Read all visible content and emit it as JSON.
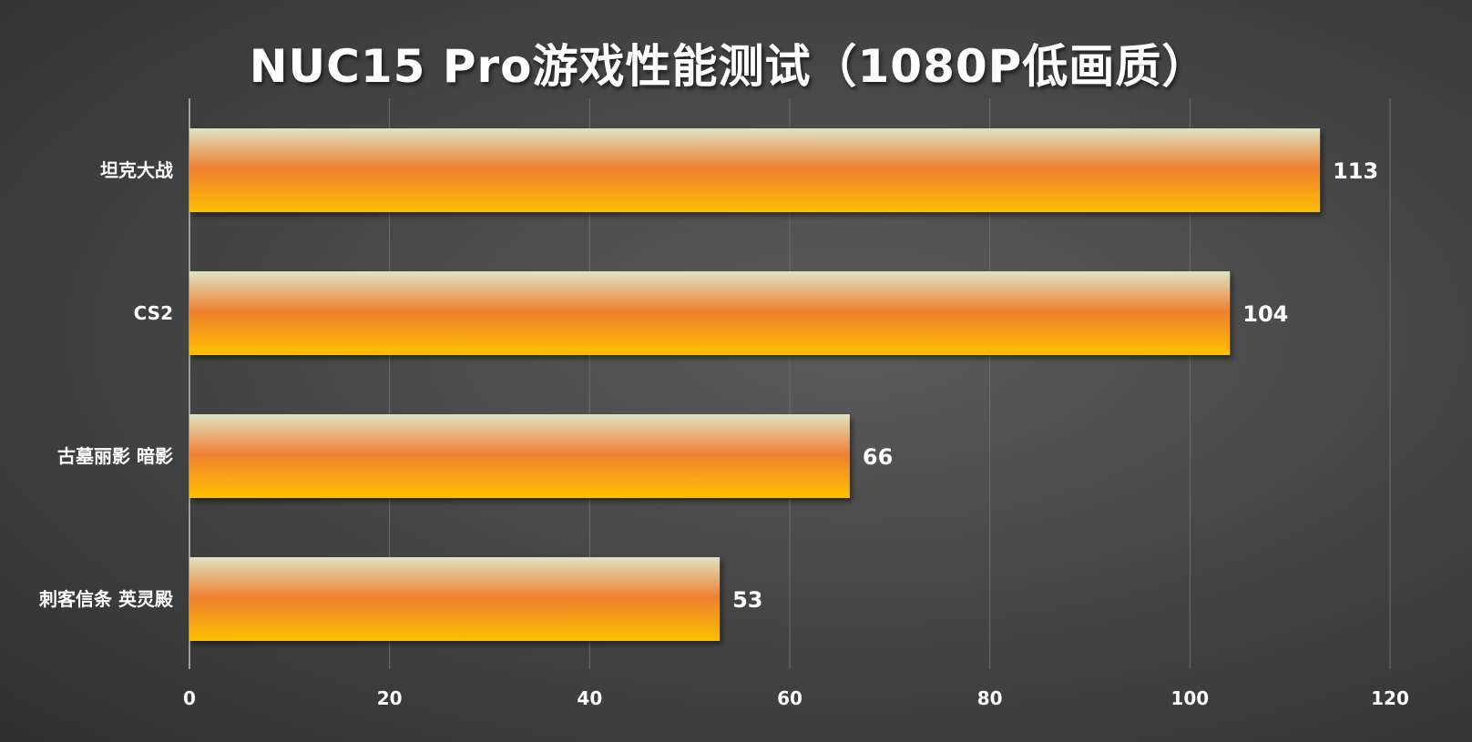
{
  "chart_data": {
    "type": "bar",
    "orientation": "horizontal",
    "title": "NUC15 Pro游戏性能测试（1080P低画质）",
    "categories": [
      "坦克大战",
      "CS2",
      "古墓丽影 暗影",
      "刺客信条 英灵殿"
    ],
    "values": [
      113,
      104,
      66,
      53
    ],
    "xlim": [
      0,
      120
    ],
    "xticks": [
      0,
      20,
      40,
      60,
      80,
      100,
      120
    ],
    "grid": true,
    "data_labels": true,
    "bar_colors": {
      "top": "#dfe3c4",
      "middle": "#ef8030",
      "bottom": "#ffc000"
    }
  },
  "colors": {
    "grid": "#6e6e6e",
    "axis": "#bdbdbd",
    "text": "#ffffff"
  }
}
